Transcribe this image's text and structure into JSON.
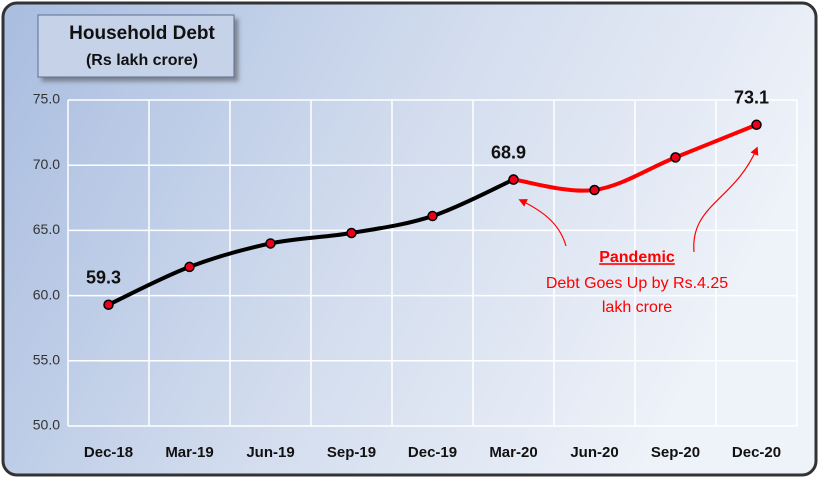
{
  "chart_data": {
    "type": "line",
    "title": "Household Debt",
    "subtitle": "(Rs lakh crore)",
    "categories": [
      "Dec-18",
      "Mar-19",
      "Jun-19",
      "Sep-19",
      "Dec-19",
      "Mar-20",
      "Jun-20",
      "Sep-20",
      "Dec-20"
    ],
    "series": [
      {
        "color": "#000000",
        "values": [
          59.3,
          62.2,
          64.0,
          64.8,
          66.1,
          68.9,
          null,
          null,
          null
        ],
        "value_labels": [
          "59.3",
          null,
          null,
          null,
          null,
          "68.9",
          null,
          null,
          null
        ]
      },
      {
        "color": "#ff0000",
        "values": [
          null,
          null,
          null,
          null,
          null,
          68.9,
          68.1,
          70.6,
          73.1
        ],
        "value_labels": [
          null,
          null,
          null,
          null,
          null,
          null,
          null,
          null,
          "73.1"
        ]
      }
    ],
    "marker_color": "#e8001c",
    "ylim": [
      50,
      75
    ],
    "yticks": [
      {
        "value": 50,
        "label": "50.0"
      },
      {
        "value": 55,
        "label": "55.0"
      },
      {
        "value": 60,
        "label": "60.0"
      },
      {
        "value": 65,
        "label": "65.0"
      },
      {
        "value": 70,
        "label": "70.0"
      },
      {
        "value": 75,
        "label": "75.0"
      }
    ],
    "grid": true,
    "annotation": {
      "title": "Pandemic",
      "lines": [
        "Debt Goes Up by Rs.4.25",
        "lakh crore"
      ]
    }
  }
}
